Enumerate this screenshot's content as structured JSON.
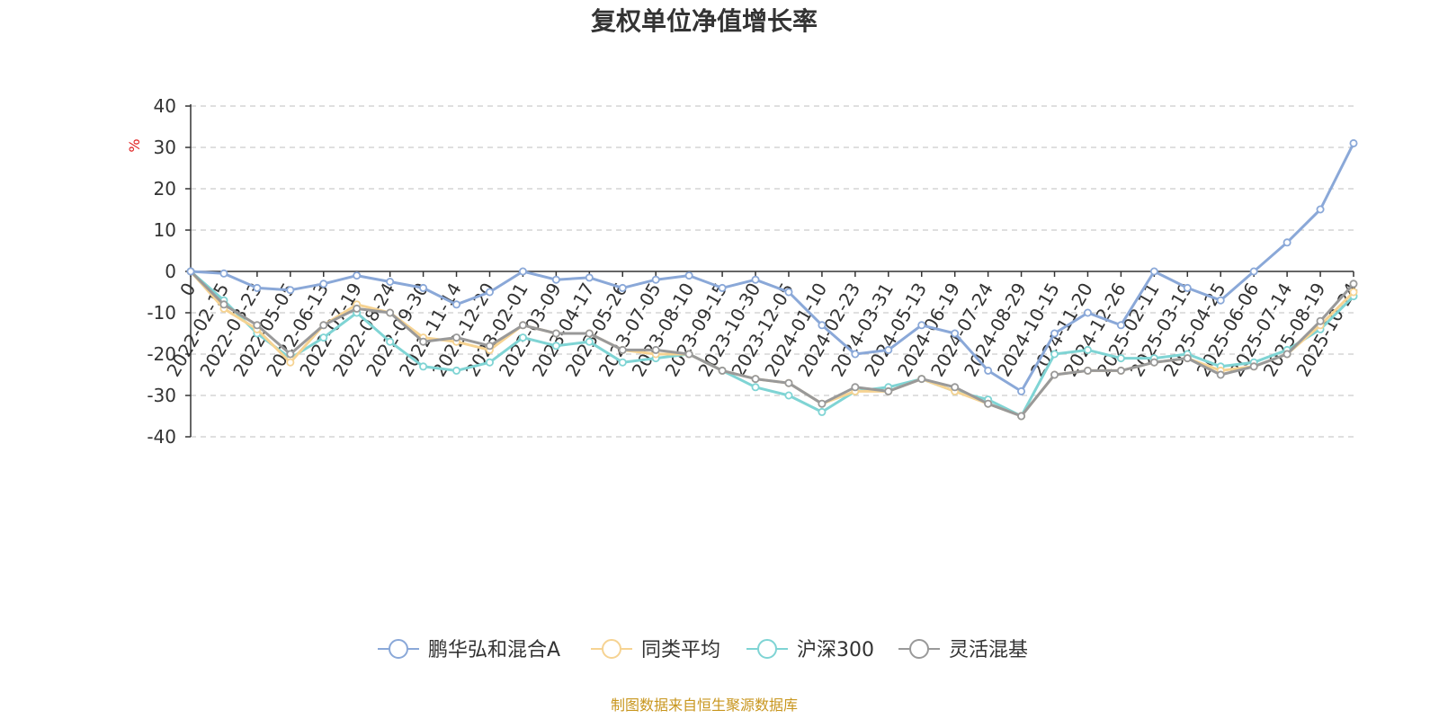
{
  "chart_data": {
    "type": "line",
    "title": "复权单位净值增长率",
    "ylabel": "%",
    "xlabel": "",
    "ylim": [
      -40,
      40
    ],
    "yticks": [
      40,
      30,
      20,
      10,
      0,
      -10,
      -20,
      -30,
      -40
    ],
    "grid": true,
    "legend_position": "bottom",
    "x": [
      "0",
      "2022-02-15",
      "2022-03-23",
      "2022-05-05",
      "2022-06-13",
      "2022-07-19",
      "2022-08-24",
      "2022-09-30",
      "2022-11-14",
      "2022-12-20",
      "2023-02-01",
      "2023-03-09",
      "2023-04-17",
      "2023-05-26",
      "2023-07-05",
      "2023-08-10",
      "2023-09-15",
      "2023-10-30",
      "2023-12-05",
      "2024-01-10",
      "2024-02-23",
      "2024-03-31",
      "2024-05-13",
      "2024-06-19",
      "2024-07-24",
      "2024-08-29",
      "2024-10-15",
      "2024-11-20",
      "2024-12-26",
      "2025-02-11",
      "2025-03-19",
      "2025-04-25",
      "2025-06-06",
      "2025-07-14",
      "2025-08-19",
      "2025-10-24"
    ],
    "series": [
      {
        "name": "鹏华弘和混合A",
        "color": "#8aa8d8",
        "values": [
          0,
          -0.5,
          -4,
          -4.5,
          -3,
          -1,
          -2.5,
          -4,
          -8,
          -5,
          0,
          -2,
          -1.5,
          -4,
          -2,
          -1,
          -4,
          -2,
          -5,
          -13,
          -20,
          -19,
          -13,
          -15,
          -24,
          -29,
          -15,
          -10,
          -13,
          0,
          -4,
          -7,
          0,
          7,
          15,
          31
        ]
      },
      {
        "name": "同类平均",
        "color": "#f6d392",
        "values": [
          0,
          -9,
          -14,
          -22,
          -13,
          -8,
          -10,
          -16,
          -17,
          -19,
          -13,
          -15,
          -15,
          -19,
          -20,
          -20,
          -24,
          -26,
          -27,
          -32,
          -29,
          -29,
          -26,
          -29,
          -32,
          -35,
          -25,
          -24,
          -24,
          -22,
          -21,
          -24,
          -23,
          -20,
          -13,
          -5
        ]
      },
      {
        "name": "沪深300",
        "color": "#7fd4d4",
        "values": [
          0,
          -7,
          -15,
          -21,
          -16,
          -10,
          -17,
          -23,
          -24,
          -22,
          -16,
          -18,
          -17,
          -22,
          -21,
          -20,
          -24,
          -28,
          -30,
          -34,
          -29,
          -28,
          -26,
          -29,
          -31,
          -35,
          -20,
          -19,
          -21,
          -21,
          -20,
          -23,
          -22,
          -19,
          -14,
          -6
        ]
      },
      {
        "name": "灵活混基",
        "color": "#999999",
        "values": [
          0,
          -8,
          -13,
          -20,
          -13,
          -9,
          -10,
          -17,
          -16,
          -18,
          -13,
          -15,
          -15,
          -19,
          -19,
          -20,
          -24,
          -26,
          -27,
          -32,
          -28,
          -29,
          -26,
          -28,
          -32,
          -35,
          -25,
          -24,
          -24,
          -22,
          -21,
          -25,
          -23,
          -20,
          -12,
          -3
        ]
      }
    ]
  },
  "source_note": "制图数据来自恒生聚源数据库"
}
